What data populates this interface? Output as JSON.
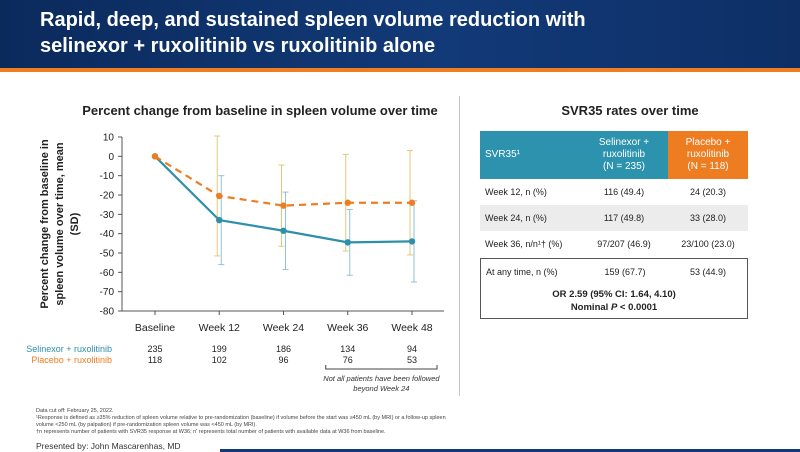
{
  "header": {
    "title_line1": "Rapid, deep, and sustained spleen volume reduction with",
    "title_line2": "selinexor + ruxolitinib vs ruxolitinib alone"
  },
  "colors": {
    "header_navy": "#123a78",
    "accent_orange": "#f07d1f",
    "teal": "#2e8fab",
    "table_teal": "#2c92ad",
    "table_orange": "#ee7d22"
  },
  "chart_data": {
    "type": "line",
    "title": "Percent change from baseline in spleen volume over time",
    "ylabel": "Percent change from baseline in spleen volume over time, mean (SD)",
    "xlabel": "",
    "categories": [
      "Baseline",
      "Week 12",
      "Week 24",
      "Week 36",
      "Week 48"
    ],
    "ylim": [
      -80,
      10
    ],
    "yticks": [
      10,
      0,
      -10,
      -20,
      -30,
      -40,
      -50,
      -60,
      -70,
      -80
    ],
    "grid": false,
    "series": [
      {
        "name": "Selinexor + ruxolitinib",
        "color": "#2e8fab",
        "style": "solid",
        "values": [
          0,
          -33,
          -38.5,
          -44.5,
          -44
        ],
        "sd": [
          0,
          23,
          20,
          17,
          21
        ],
        "n": [
          "235",
          "199",
          "186",
          "134",
          "94"
        ]
      },
      {
        "name": "Placebo + ruxolitinib",
        "color": "#ee7d22",
        "style": "dashed",
        "values": [
          0,
          -20.5,
          -25.5,
          -24,
          -24
        ],
        "sd": [
          0,
          31,
          21,
          25,
          27
        ],
        "n": [
          "118",
          "102",
          "96",
          "76",
          "53"
        ]
      }
    ],
    "annotation": "Not all patients have been followed beyond Week 24"
  },
  "svr_table": {
    "title": "SVR35 rates over time",
    "header": {
      "col1": "SVR35¹",
      "col2_line1": "Selinexor +",
      "col2_line2": "ruxolitinib",
      "col2_line3": "(N = 235)",
      "col3_line1": "Placebo +",
      "col3_line2": "ruxolitinib",
      "col3_line3": "(N = 118)"
    },
    "rows": [
      {
        "label": "Week 12, n (%)",
        "sel": "116 (49.4)",
        "pbo": "24 (20.3)"
      },
      {
        "label": "Week 24, n (%)",
        "sel": "117 (49.8)",
        "pbo": "33 (28.0)"
      },
      {
        "label": "Week 36, n/n¹† (%)",
        "sel": "97/207 (46.9)",
        "pbo": "23/100 (23.0)"
      },
      {
        "label": "At any time, n (%)",
        "sel": "159 (67.7)",
        "pbo": "53 (44.9)"
      }
    ],
    "or_text": "OR 2.59 (95% CI: 1.64, 4.10)",
    "nominal_prefix": "Nominal ",
    "nominal_p": "P",
    "nominal_suffix": " < 0.0001"
  },
  "footnotes": {
    "line1": "Data cut off: February 25, 2022.",
    "line2": "¹Response is defined as ≥35% reduction of spleen volume relative to pre-randomization (baseline) if volume before the start was ≥450 mL (by MRI) or a follow-up spleen",
    "line3": "volume <250 mL (by palpation) if pre-randomization spleen volume was <450 mL (by MRI).",
    "line4": "†n represents number of patients with SVR35 response at W36; n' represents total number of patients with available data at W36 from baseline."
  },
  "presenter": "Presented by: John Mascarenhas, MD"
}
